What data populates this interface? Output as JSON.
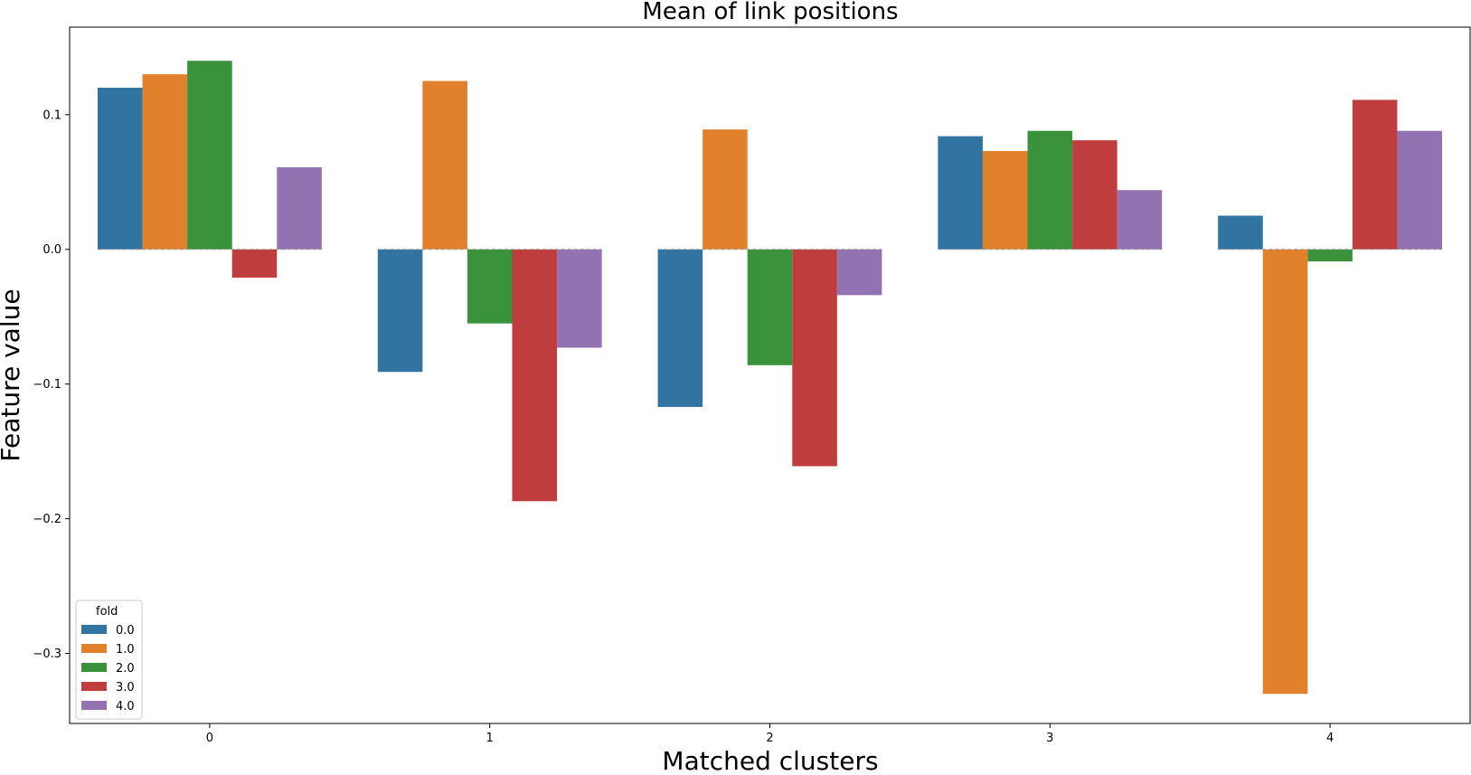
{
  "chart_data": {
    "type": "bar",
    "title": "Mean of link positions",
    "xlabel": "Matched clusters",
    "ylabel": "Feature value",
    "categories": [
      "0",
      "1",
      "2",
      "3",
      "4"
    ],
    "yticks": [
      {
        "value": 0.1,
        "label": "0.1"
      },
      {
        "value": 0.0,
        "label": "0.0"
      },
      {
        "value": -0.1,
        "label": "−0.1"
      },
      {
        "value": -0.2,
        "label": "−0.2"
      },
      {
        "value": -0.3,
        "label": "−0.3"
      }
    ],
    "ylim": [
      -0.352,
      0.165
    ],
    "grid": false,
    "legend": {
      "title": "fold",
      "position": "lower-left"
    },
    "series": [
      {
        "name": "0.0",
        "color": "#3274a1",
        "values": [
          0.12,
          -0.091,
          -0.117,
          0.084,
          0.025
        ]
      },
      {
        "name": "1.0",
        "color": "#e1812c",
        "values": [
          0.13,
          0.125,
          0.089,
          0.073,
          -0.33
        ]
      },
      {
        "name": "2.0",
        "color": "#3a923a",
        "values": [
          0.14,
          -0.055,
          -0.086,
          0.088,
          -0.009
        ]
      },
      {
        "name": "3.0",
        "color": "#c03d3e",
        "values": [
          -0.021,
          -0.187,
          -0.161,
          0.081,
          0.111
        ]
      },
      {
        "name": "4.0",
        "color": "#9372b2",
        "values": [
          0.061,
          -0.073,
          -0.034,
          0.044,
          0.088
        ]
      }
    ]
  }
}
